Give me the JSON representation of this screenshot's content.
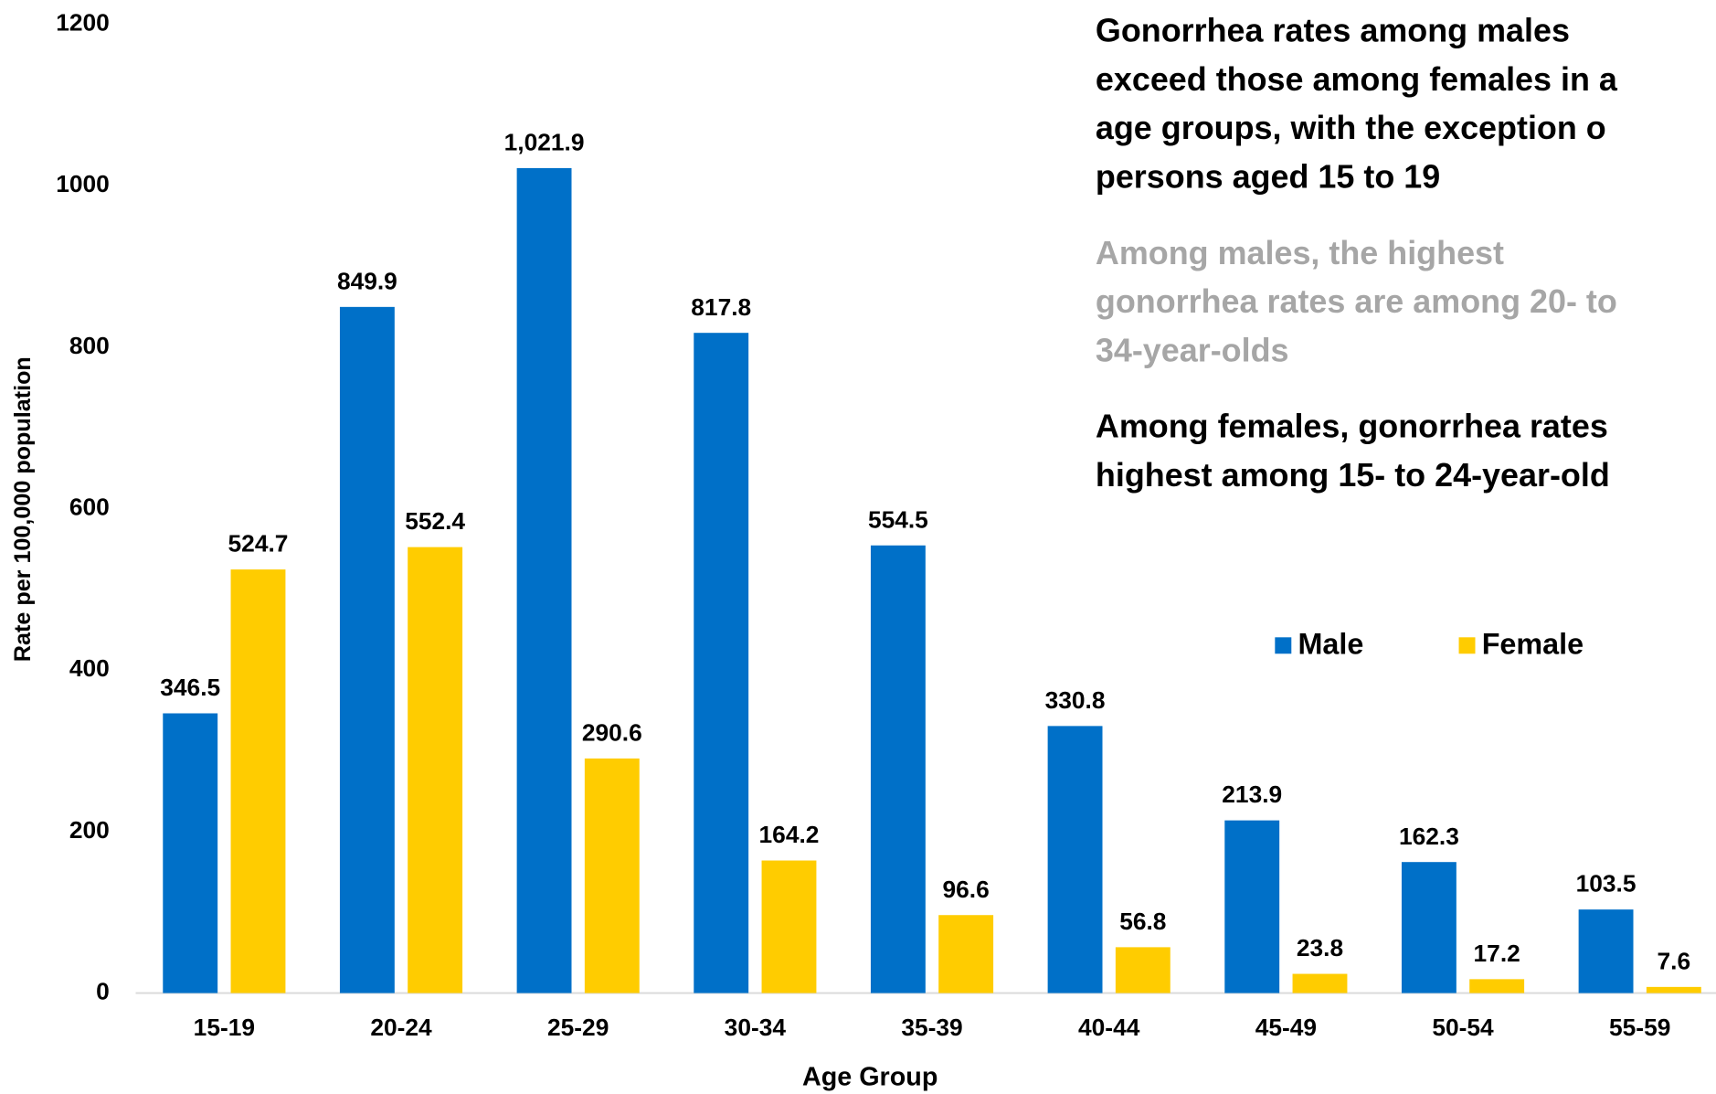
{
  "chart_data": {
    "type": "bar",
    "x_label": "Age Group",
    "y_label": "Rate per 100,000 population",
    "categories": [
      "15-19",
      "20-24",
      "25-29",
      "30-34",
      "35-39",
      "40-44",
      "45-49",
      "50-54",
      "55-59"
    ],
    "series": [
      {
        "name": "Male",
        "color": "#0070c8",
        "values": [
          346.5,
          849.9,
          1021.9,
          817.8,
          554.5,
          330.8,
          213.9,
          162.3,
          103.5
        ],
        "value_labels": [
          "346.5",
          "849.9",
          "1,021.9",
          "817.8",
          "554.5",
          "330.8",
          "213.9",
          "162.3",
          "103.5"
        ]
      },
      {
        "name": "Female",
        "color": "#ffcc00",
        "values": [
          524.7,
          552.4,
          290.6,
          164.2,
          96.6,
          56.8,
          23.8,
          17.2,
          7.6
        ]
      }
    ],
    "ylim": [
      0,
      1200
    ],
    "yticks": [
      0,
      200,
      400,
      600,
      800,
      1000,
      1200
    ],
    "grid": false,
    "legend": "right",
    "annotations": [
      {
        "color": "#000000",
        "lines": [
          "Gonorrhea rates among males",
          "exceed those among females in a",
          "age groups, with the exception o",
          "persons aged 15 to 19"
        ]
      },
      {
        "color": "#a6a6a6",
        "lines": [
          "Among males, the highest",
          "gonorrhea rates are among 20- to",
          "34-year-olds"
        ]
      },
      {
        "color": "#000000",
        "lines": [
          "Among females, gonorrhea rates",
          "highest among 15- to 24-year-old"
        ]
      }
    ]
  }
}
